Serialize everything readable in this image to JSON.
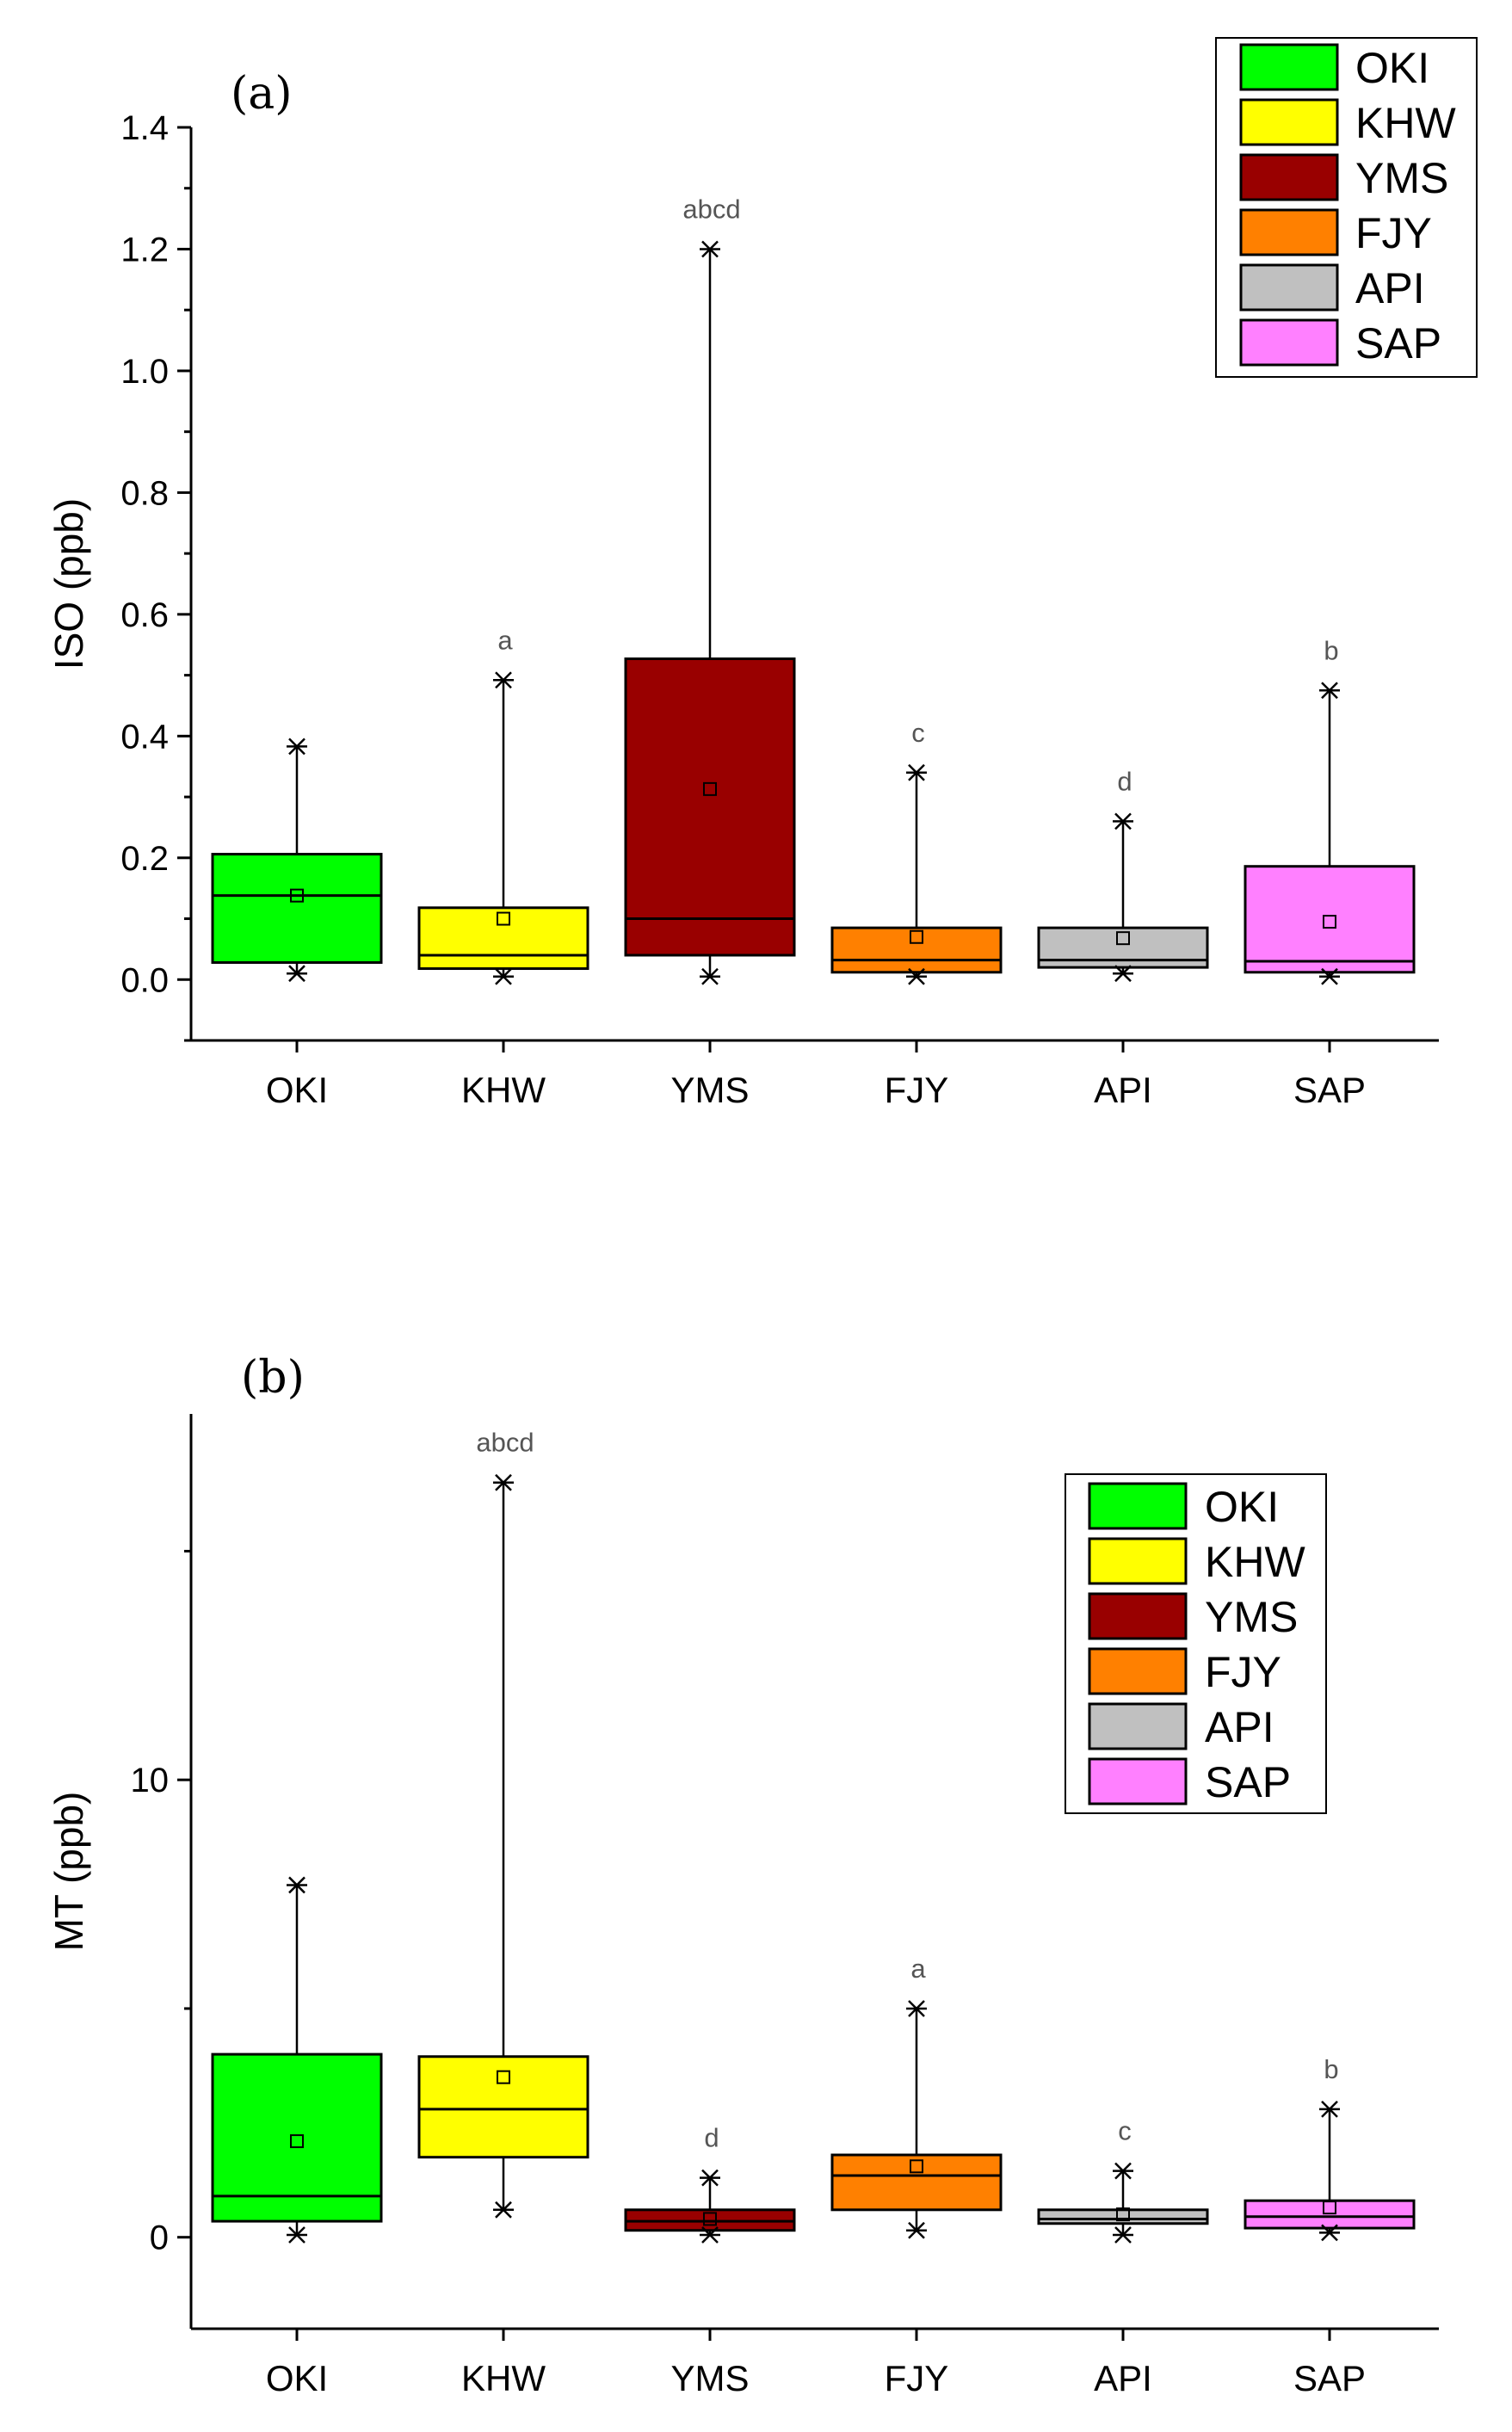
{
  "chart_data": [
    {
      "type": "box",
      "panel_label": "(a)",
      "ylabel": "ISO (ppb)",
      "ylim": [
        -0.1,
        1.4
      ],
      "yticks": [
        0.0,
        0.2,
        0.4,
        0.6,
        0.8,
        1.0,
        1.2,
        1.4
      ],
      "ytick_labels": [
        "0.0",
        "0.2",
        "0.4",
        "0.6",
        "0.8",
        "1.0",
        "1.2",
        "1.4"
      ],
      "legend_position": "top-right",
      "categories": [
        "OKI",
        "KHW",
        "YMS",
        "FJY",
        "API",
        "SAP"
      ],
      "series": [
        {
          "name": "OKI",
          "color": "#00ff00",
          "min": 0.01,
          "q1": 0.028,
          "median": 0.138,
          "q3": 0.206,
          "max": 0.383,
          "mean": 0.138,
          "sig": ""
        },
        {
          "name": "KHW",
          "color": "#ffff00",
          "min": 0.005,
          "q1": 0.018,
          "median": 0.04,
          "q3": 0.118,
          "max": 0.492,
          "mean": 0.1,
          "sig": "a"
        },
        {
          "name": "YMS",
          "color": "#990000",
          "min": 0.005,
          "q1": 0.04,
          "median": 0.1,
          "q3": 0.527,
          "max": 1.2,
          "mean": 0.313,
          "sig": "abcd"
        },
        {
          "name": "FJY",
          "color": "#ff8000",
          "min": 0.005,
          "q1": 0.012,
          "median": 0.032,
          "q3": 0.085,
          "max": 0.34,
          "mean": 0.07,
          "sig": "c"
        },
        {
          "name": "API",
          "color": "#c0c0c0",
          "min": 0.01,
          "q1": 0.02,
          "median": 0.032,
          "q3": 0.085,
          "max": 0.26,
          "mean": 0.068,
          "sig": "d"
        },
        {
          "name": "SAP",
          "color": "#ff80ff",
          "min": 0.005,
          "q1": 0.012,
          "median": 0.03,
          "q3": 0.186,
          "max": 0.475,
          "mean": 0.095,
          "sig": "b"
        }
      ]
    },
    {
      "type": "box",
      "panel_label": "(b)",
      "ylabel": "MT (ppb)",
      "ylim": [
        -2.0,
        18.0
      ],
      "yticks": [
        0,
        10
      ],
      "ytick_labels": [
        "0",
        "10"
      ],
      "yticks_minor": [
        5,
        15
      ],
      "legend_position": "top-right",
      "categories": [
        "OKI",
        "KHW",
        "YMS",
        "FJY",
        "API",
        "SAP"
      ],
      "series": [
        {
          "name": "OKI",
          "color": "#00ff00",
          "min": 0.05,
          "q1": 0.35,
          "median": 0.9,
          "q3": 4.0,
          "max": 7.7,
          "mean": 2.1,
          "sig": ""
        },
        {
          "name": "KHW",
          "color": "#ffff00",
          "min": 0.6,
          "q1": 1.75,
          "median": 2.8,
          "q3": 3.95,
          "max": 16.5,
          "mean": 3.5,
          "sig": "abcd"
        },
        {
          "name": "YMS",
          "color": "#990000",
          "min": 0.05,
          "q1": 0.15,
          "median": 0.35,
          "q3": 0.6,
          "max": 1.3,
          "mean": 0.4,
          "sig": "d"
        },
        {
          "name": "FJY",
          "color": "#ff8000",
          "min": 0.15,
          "q1": 0.6,
          "median": 1.35,
          "q3": 1.8,
          "max": 5.0,
          "mean": 1.55,
          "sig": "a"
        },
        {
          "name": "API",
          "color": "#c0c0c0",
          "min": 0.05,
          "q1": 0.3,
          "median": 0.4,
          "q3": 0.6,
          "max": 1.45,
          "mean": 0.5,
          "sig": "c"
        },
        {
          "name": "SAP",
          "color": "#ff80ff",
          "min": 0.1,
          "q1": 0.2,
          "median": 0.45,
          "q3": 0.8,
          "max": 2.8,
          "mean": 0.65,
          "sig": "b"
        }
      ]
    }
  ]
}
